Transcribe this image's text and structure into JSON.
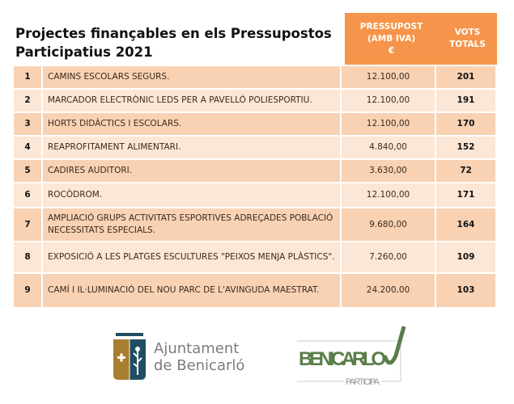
{
  "title": "Projectes finançables en els Pressupostos Participatius 2021",
  "headers": {
    "budget": [
      "PRESSUPOST",
      "(AMB IVA)",
      "€"
    ],
    "votes": [
      "VOTS",
      "TOTALS"
    ]
  },
  "rows": [
    {
      "n": "1",
      "desc": "CAMINS ESCOLARS SEGURS.",
      "budget": "12.100,00",
      "votes": "201"
    },
    {
      "n": "2",
      "desc": "MARCADOR ELECTRÒNIC LEDS PER A PAVELLÓ POLIESPORTIU.",
      "budget": "12.100,00",
      "votes": "191"
    },
    {
      "n": "3",
      "desc": "HORTS DIDÀCTICS I ESCOLARS.",
      "budget": "12.100,00",
      "votes": "170"
    },
    {
      "n": "4",
      "desc": "REAPROFITAMENT ALIMENTARI.",
      "budget": "4.840,00",
      "votes": "152"
    },
    {
      "n": "5",
      "desc": "CADIRES AUDITORI.",
      "budget": "3.630,00",
      "votes": "72"
    },
    {
      "n": "6",
      "desc": "ROCÒDROM.",
      "budget": "12.100,00",
      "votes": "171"
    },
    {
      "n": "7",
      "desc": "AMPLIACIÓ GRUPS ACTIVITATS ESPORTIVES ADREÇADES POBLACIÓ NECESSITATS ESPECIALS.",
      "budget": "9.680,00",
      "votes": "164"
    },
    {
      "n": "8",
      "desc": "EXPOSICIÓ A LES PLATGES ESCULTURES \"PEIXOS MENJA PLÀSTICS\".",
      "budget": "7.260,00",
      "votes": "109"
    },
    {
      "n": "9",
      "desc": "CAMÍ I IL·LUMINACIÓ DEL NOU PARC DE L'AVINGUDA MAESTRAT.",
      "budget": "24.200,00",
      "votes": "103"
    }
  ],
  "logos": {
    "ajuntament": [
      "Ajuntament",
      "de Benicarló"
    ],
    "participa": [
      "BENICARLO",
      "PARTICIPA"
    ]
  },
  "colors": {
    "header": "#f5944a",
    "row_odd": "#f9d2b3",
    "row_even": "#fce6d5",
    "logo_green": "#5a7d4a",
    "logo_blue": "#1f4e63",
    "logo_gold": "#a97f2f"
  }
}
